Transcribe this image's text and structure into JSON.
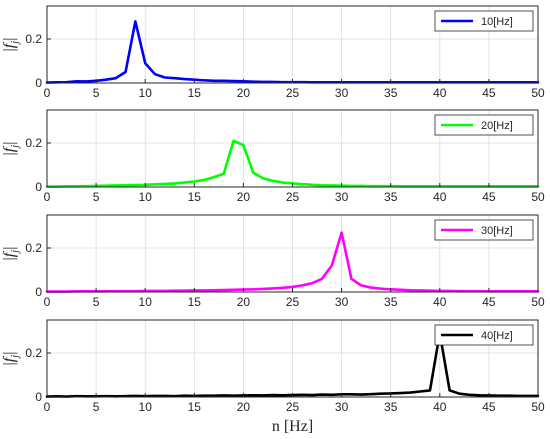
{
  "chart_data": [
    {
      "type": "line",
      "ylabel": "|f_j|",
      "xlim": [
        0,
        50
      ],
      "ylim": [
        0,
        0.35
      ],
      "xticks": [
        "0",
        "5",
        "10",
        "15",
        "20",
        "25",
        "30",
        "35",
        "40",
        "45",
        "50"
      ],
      "yticks": [
        "0",
        "0.2"
      ],
      "grid": true,
      "legend_position": "top-right",
      "series": [
        {
          "name": "10[Hz]",
          "color": "#0000ff",
          "x": [
            0,
            1,
            2,
            3,
            4,
            5,
            6,
            7,
            8,
            9,
            10,
            11,
            12,
            13,
            14,
            15,
            16,
            17,
            18,
            19,
            20,
            21,
            22,
            23,
            24,
            25,
            26,
            27,
            28,
            29,
            30,
            31,
            32,
            33,
            34,
            35,
            36,
            37,
            38,
            39,
            40,
            41,
            42,
            43,
            44,
            45,
            46,
            47,
            48,
            49,
            50
          ],
          "values": [
            0.002,
            0.003,
            0.004,
            0.008,
            0.007,
            0.01,
            0.015,
            0.022,
            0.05,
            0.28,
            0.09,
            0.04,
            0.025,
            0.022,
            0.018,
            0.015,
            0.012,
            0.01,
            0.01,
            0.009,
            0.008,
            0.006,
            0.005,
            0.005,
            0.004,
            0.004,
            0.004,
            0.003,
            0.003,
            0.003,
            0.003,
            0.003,
            0.003,
            0.003,
            0.003,
            0.003,
            0.003,
            0.003,
            0.003,
            0.003,
            0.003,
            0.003,
            0.003,
            0.003,
            0.003,
            0.003,
            0.003,
            0.003,
            0.003,
            0.003,
            0.003
          ]
        }
      ]
    },
    {
      "type": "line",
      "ylabel": "|f_j|",
      "xlim": [
        0,
        50
      ],
      "ylim": [
        0,
        0.35
      ],
      "xticks": [
        "0",
        "5",
        "10",
        "15",
        "20",
        "25",
        "30",
        "35",
        "40",
        "45",
        "50"
      ],
      "yticks": [
        "0",
        "0.2"
      ],
      "grid": true,
      "legend_position": "top-right",
      "series": [
        {
          "name": "20[Hz]",
          "color": "#00ff00",
          "x": [
            0,
            1,
            2,
            3,
            4,
            5,
            6,
            7,
            8,
            9,
            10,
            11,
            12,
            13,
            14,
            15,
            16,
            17,
            18,
            19,
            20,
            21,
            22,
            23,
            24,
            25,
            26,
            27,
            28,
            29,
            30,
            31,
            32,
            33,
            34,
            35,
            36,
            37,
            38,
            39,
            40,
            41,
            42,
            43,
            44,
            45,
            46,
            47,
            48,
            49,
            50
          ],
          "values": [
            0.002,
            0.002,
            0.003,
            0.003,
            0.004,
            0.005,
            0.006,
            0.007,
            0.008,
            0.009,
            0.01,
            0.012,
            0.014,
            0.016,
            0.02,
            0.025,
            0.032,
            0.045,
            0.06,
            0.21,
            0.19,
            0.065,
            0.04,
            0.028,
            0.02,
            0.016,
            0.013,
            0.01,
            0.008,
            0.007,
            0.006,
            0.005,
            0.005,
            0.004,
            0.004,
            0.004,
            0.003,
            0.003,
            0.003,
            0.003,
            0.003,
            0.003,
            0.003,
            0.003,
            0.003,
            0.003,
            0.003,
            0.003,
            0.003,
            0.003,
            0.003
          ]
        }
      ]
    },
    {
      "type": "line",
      "ylabel": "|f_j|",
      "xlim": [
        0,
        50
      ],
      "ylim": [
        0,
        0.35
      ],
      "xticks": [
        "0",
        "5",
        "10",
        "15",
        "20",
        "25",
        "30",
        "35",
        "40",
        "45",
        "50"
      ],
      "yticks": [
        "0",
        "0.2"
      ],
      "grid": true,
      "legend_position": "top-right",
      "series": [
        {
          "name": "30[Hz]",
          "color": "#ff00ff",
          "x": [
            0,
            1,
            2,
            3,
            4,
            5,
            6,
            7,
            8,
            9,
            10,
            11,
            12,
            13,
            14,
            15,
            16,
            17,
            18,
            19,
            20,
            21,
            22,
            23,
            24,
            25,
            26,
            27,
            28,
            29,
            30,
            31,
            32,
            33,
            34,
            35,
            36,
            37,
            38,
            39,
            40,
            41,
            42,
            43,
            44,
            45,
            46,
            47,
            48,
            49,
            50
          ],
          "values": [
            0.002,
            0.002,
            0.002,
            0.003,
            0.003,
            0.003,
            0.003,
            0.004,
            0.004,
            0.004,
            0.005,
            0.005,
            0.005,
            0.006,
            0.006,
            0.007,
            0.007,
            0.008,
            0.009,
            0.01,
            0.011,
            0.012,
            0.014,
            0.016,
            0.019,
            0.023,
            0.03,
            0.04,
            0.06,
            0.12,
            0.27,
            0.06,
            0.03,
            0.02,
            0.015,
            0.012,
            0.01,
            0.008,
            0.007,
            0.006,
            0.005,
            0.005,
            0.004,
            0.004,
            0.004,
            0.003,
            0.003,
            0.003,
            0.003,
            0.003,
            0.003
          ]
        }
      ]
    },
    {
      "type": "line",
      "ylabel": "|f_j|",
      "xlim": [
        0,
        50
      ],
      "ylim": [
        0,
        0.35
      ],
      "xticks": [
        "0",
        "5",
        "10",
        "15",
        "20",
        "25",
        "30",
        "35",
        "40",
        "45",
        "50"
      ],
      "yticks": [
        "0",
        "0.2"
      ],
      "grid": true,
      "legend_position": "top-right",
      "xlabel": "n [Hz]",
      "series": [
        {
          "name": "40[Hz]",
          "color": "#000000",
          "x": [
            0,
            1,
            2,
            3,
            4,
            5,
            6,
            7,
            8,
            9,
            10,
            11,
            12,
            13,
            14,
            15,
            16,
            17,
            18,
            19,
            20,
            21,
            22,
            23,
            24,
            25,
            26,
            27,
            28,
            29,
            30,
            31,
            32,
            33,
            34,
            35,
            36,
            37,
            38,
            39,
            40,
            41,
            42,
            43,
            44,
            45,
            46,
            47,
            48,
            49,
            50
          ],
          "values": [
            0.002,
            0.003,
            0.002,
            0.004,
            0.003,
            0.003,
            0.004,
            0.003,
            0.004,
            0.005,
            0.004,
            0.005,
            0.005,
            0.004,
            0.006,
            0.005,
            0.006,
            0.006,
            0.007,
            0.006,
            0.007,
            0.008,
            0.007,
            0.009,
            0.008,
            0.009,
            0.01,
            0.009,
            0.011,
            0.01,
            0.012,
            0.012,
            0.011,
            0.013,
            0.015,
            0.016,
            0.018,
            0.02,
            0.025,
            0.03,
            0.29,
            0.03,
            0.015,
            0.01,
            0.008,
            0.007,
            0.006,
            0.006,
            0.005,
            0.005,
            0.005
          ]
        }
      ]
    }
  ]
}
